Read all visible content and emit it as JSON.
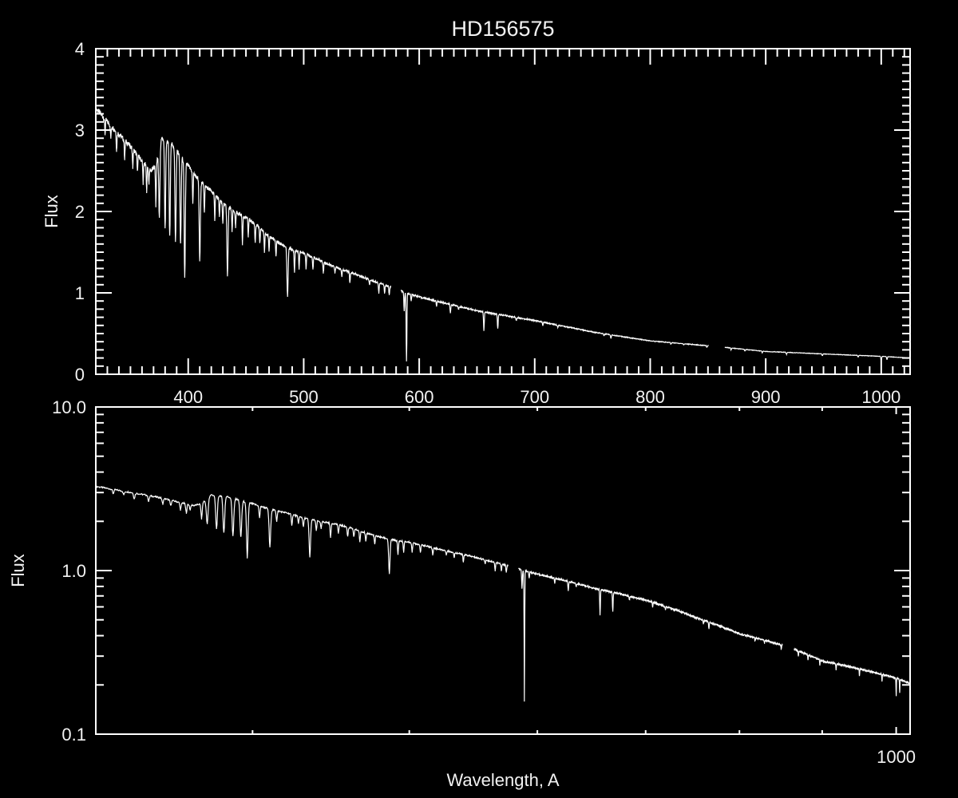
{
  "chart_data": {
    "type": "line",
    "title": "HD156575",
    "xlabel": "Wavelength, A",
    "background": "#000000",
    "line_color": "#ffffff",
    "spectrum": {
      "continuum": [
        [
          320,
          3.27
        ],
        [
          330,
          3.1
        ],
        [
          340,
          2.95
        ],
        [
          350,
          2.8
        ],
        [
          360,
          2.62
        ],
        [
          368,
          2.5
        ],
        [
          372,
          2.56
        ],
        [
          377,
          2.9
        ],
        [
          385,
          2.85
        ],
        [
          395,
          2.65
        ],
        [
          400,
          2.56
        ],
        [
          410,
          2.37
        ],
        [
          420,
          2.25
        ],
        [
          430,
          2.1
        ],
        [
          440,
          2.0
        ],
        [
          450,
          1.93
        ],
        [
          460,
          1.82
        ],
        [
          470,
          1.7
        ],
        [
          480,
          1.6
        ],
        [
          490,
          1.53
        ],
        [
          500,
          1.49
        ],
        [
          520,
          1.36
        ],
        [
          550,
          1.2
        ],
        [
          575,
          1.07
        ],
        [
          585,
          1.02
        ],
        [
          600,
          0.95
        ],
        [
          650,
          0.78
        ],
        [
          700,
          0.66
        ],
        [
          750,
          0.52
        ],
        [
          800,
          0.41
        ],
        [
          850,
          0.35
        ],
        [
          865,
          0.33
        ],
        [
          900,
          0.28
        ],
        [
          950,
          0.25
        ],
        [
          1000,
          0.22
        ],
        [
          1025,
          0.2
        ]
      ],
      "gaps": [
        [
          575.5,
          584
        ],
        [
          850.5,
          864.5
        ]
      ],
      "absorption_lines": [
        [
          328,
          2.95
        ],
        [
          333,
          2.9
        ],
        [
          338,
          2.75
        ],
        [
          345,
          2.65
        ],
        [
          352,
          2.55
        ],
        [
          356,
          2.5
        ],
        [
          361,
          2.35
        ],
        [
          364,
          2.25
        ],
        [
          366,
          2.35
        ],
        [
          372,
          2.07
        ],
        [
          375,
          1.92
        ],
        [
          380,
          1.8
        ],
        [
          384,
          1.7
        ],
        [
          389,
          1.63
        ],
        [
          393.4,
          1.6
        ],
        [
          397,
          1.19
        ],
        [
          404,
          2.1
        ],
        [
          410,
          1.39
        ],
        [
          414,
          2.0
        ],
        [
          423,
          1.9
        ],
        [
          427,
          1.95
        ],
        [
          430,
          1.85
        ],
        [
          434,
          1.21
        ],
        [
          438,
          1.75
        ],
        [
          441,
          1.8
        ],
        [
          447,
          1.6
        ],
        [
          452,
          1.7
        ],
        [
          458,
          1.62
        ],
        [
          462,
          1.6
        ],
        [
          466,
          1.5
        ],
        [
          470,
          1.5
        ],
        [
          476,
          1.45
        ],
        [
          486,
          0.95
        ],
        [
          492,
          1.25
        ],
        [
          496,
          1.3
        ],
        [
          502,
          1.3
        ],
        [
          508,
          1.3
        ],
        [
          517,
          1.25
        ],
        [
          527,
          1.25
        ],
        [
          533,
          1.2
        ],
        [
          540,
          1.12
        ],
        [
          557,
          1.1
        ],
        [
          565,
          1.0
        ],
        [
          570,
          1.0
        ],
        [
          574,
          0.98
        ],
        [
          587,
          0.77
        ],
        [
          589,
          0.16
        ],
        [
          593,
          0.9
        ],
        [
          615,
          0.84
        ],
        [
          627,
          0.75
        ],
        [
          634,
          0.8
        ],
        [
          656,
          0.53
        ],
        [
          668,
          0.56
        ],
        [
          684,
          0.66
        ],
        [
          707,
          0.6
        ],
        [
          720,
          0.58
        ],
        [
          760,
          0.47
        ],
        [
          766,
          0.44
        ],
        [
          818,
          0.37
        ],
        [
          829,
          0.36
        ],
        [
          849,
          0.33
        ],
        [
          870,
          0.3
        ],
        [
          882,
          0.285
        ],
        [
          897,
          0.265
        ],
        [
          918,
          0.245
        ],
        [
          949,
          0.225
        ],
        [
          980,
          0.21
        ],
        [
          1000,
          0.17
        ],
        [
          1005,
          0.18
        ]
      ]
    },
    "panels": [
      {
        "xscale": "linear",
        "yscale": "linear",
        "xlim": [
          320,
          1025
        ],
        "ylim": [
          0,
          4
        ],
        "ylabel": "Flux",
        "xtick_labels": [
          "400",
          "500",
          "600",
          "700",
          "800",
          "900",
          "1000"
        ],
        "ytick_labels": [
          "0",
          "1",
          "2",
          "3",
          "4"
        ],
        "grid": false
      },
      {
        "xscale": "log",
        "yscale": "log",
        "xlim": [
          320,
          1020
        ],
        "ylim": [
          0.1,
          10
        ],
        "ylabel": "Flux",
        "xtick_labels": [
          "1000"
        ],
        "ytick_labels": [
          "0.1",
          "1.0",
          "10.0"
        ],
        "grid": false
      }
    ]
  }
}
